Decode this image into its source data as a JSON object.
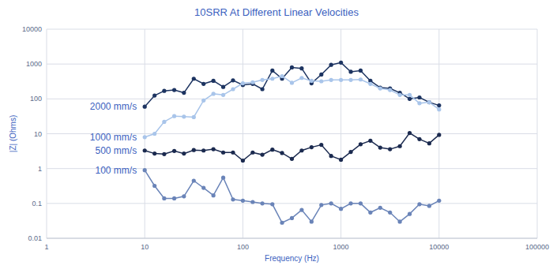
{
  "chart_data": {
    "type": "line",
    "title": "10SRR At Different Linear Velocities",
    "x_label": "Frequency (Hz)",
    "y_label": "|Z| (Ohms)",
    "log": true,
    "grid": true,
    "marker": "circle",
    "line_style": "solid",
    "xlim": [
      1,
      100000
    ],
    "xticks": [
      1,
      10,
      100,
      1000,
      10000,
      100000
    ],
    "ylim": [
      0.01,
      10000
    ],
    "yticks": [
      0.01,
      0.1,
      1,
      10,
      100,
      1000,
      10000
    ],
    "x": [
      10,
      12.6,
      15.8,
      20,
      25.1,
      31.6,
      39.8,
      50.1,
      63.1,
      79.4,
      100,
      126,
      158,
      200,
      251,
      316,
      398,
      501,
      631,
      794,
      1000,
      1259,
      1585,
      1995,
      2512,
      3162,
      3981,
      5012,
      6310,
      7943,
      10000
    ],
    "series": [
      {
        "name": "2000 mm/s",
        "color": "#1d3461",
        "values": [
          60,
          125,
          170,
          180,
          150,
          380,
          270,
          330,
          220,
          340,
          250,
          270,
          190,
          650,
          380,
          800,
          750,
          280,
          500,
          950,
          1100,
          600,
          650,
          330,
          210,
          200,
          150,
          100,
          110,
          80,
          65
        ]
      },
      {
        "name": "1000 mm/s",
        "color": "#a9c5ea",
        "values": [
          8,
          10,
          22,
          32,
          31,
          30,
          90,
          140,
          130,
          190,
          280,
          300,
          350,
          380,
          450,
          290,
          400,
          330,
          320,
          350,
          350,
          350,
          360,
          270,
          200,
          180,
          130,
          130,
          75,
          80,
          50
        ]
      },
      {
        "name": "500 mm/s",
        "color": "#1b2a4f",
        "values": [
          3.3,
          2.7,
          2.6,
          3.2,
          2.7,
          3.4,
          3.3,
          3.6,
          2.9,
          2.9,
          1.7,
          2.9,
          2.5,
          3.5,
          2.8,
          1.9,
          3.3,
          4.1,
          4.8,
          2.3,
          1.8,
          3.0,
          5.0,
          6.3,
          4.0,
          3.6,
          4.4,
          10.5,
          7.0,
          5.3,
          9.3
        ]
      },
      {
        "name": "100 mm/s",
        "color": "#6a84b8",
        "values": [
          0.9,
          0.32,
          0.14,
          0.14,
          0.16,
          0.45,
          0.28,
          0.17,
          0.55,
          0.13,
          0.12,
          0.11,
          0.1,
          0.095,
          0.028,
          0.038,
          0.065,
          0.03,
          0.09,
          0.1,
          0.07,
          0.1,
          0.1,
          0.055,
          0.075,
          0.055,
          0.03,
          0.05,
          0.095,
          0.085,
          0.12
        ]
      }
    ]
  }
}
